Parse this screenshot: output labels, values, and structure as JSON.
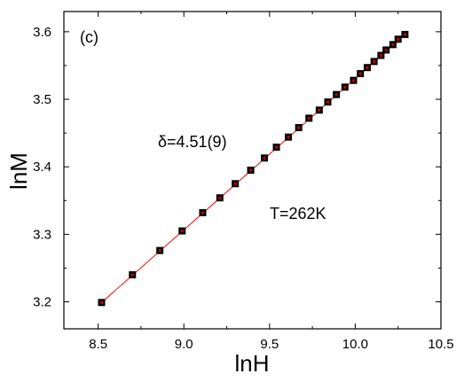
{
  "chart_data": {
    "type": "scatter",
    "panel_label": "(c)",
    "xlabel": "lnH",
    "ylabel": "lnM",
    "xlim": [
      8.3,
      10.5
    ],
    "ylim": [
      3.16,
      3.63
    ],
    "xticks": [
      "8.5",
      "9.0",
      "9.5",
      "10.0",
      "10.5"
    ],
    "yticks": [
      "3.2",
      "3.3",
      "3.4",
      "3.5",
      "3.6"
    ],
    "annotations": {
      "delta": "δ=4.51(9)",
      "temperature": "T=262K"
    },
    "colors": {
      "marker": "#000000",
      "marker_center": "#cc0000",
      "fit_line": "#ff0000"
    },
    "series": [
      {
        "x": [
          8.52,
          8.7,
          8.86,
          8.99,
          9.11,
          9.21,
          9.3,
          9.39,
          9.47,
          9.54,
          9.61,
          9.67,
          9.73,
          9.79,
          9.84,
          9.89,
          9.94,
          9.99,
          10.03,
          10.07,
          10.11,
          10.15,
          10.18,
          10.22,
          10.25,
          10.29
        ],
        "y": [
          3.199,
          3.24,
          3.276,
          3.305,
          3.332,
          3.354,
          3.375,
          3.395,
          3.413,
          3.429,
          3.444,
          3.458,
          3.472,
          3.484,
          3.496,
          3.507,
          3.518,
          3.528,
          3.538,
          3.547,
          3.556,
          3.565,
          3.573,
          3.581,
          3.589,
          3.596
        ]
      }
    ],
    "fit": {
      "x": [
        8.52,
        10.29
      ],
      "y": [
        3.199,
        3.596
      ]
    }
  }
}
